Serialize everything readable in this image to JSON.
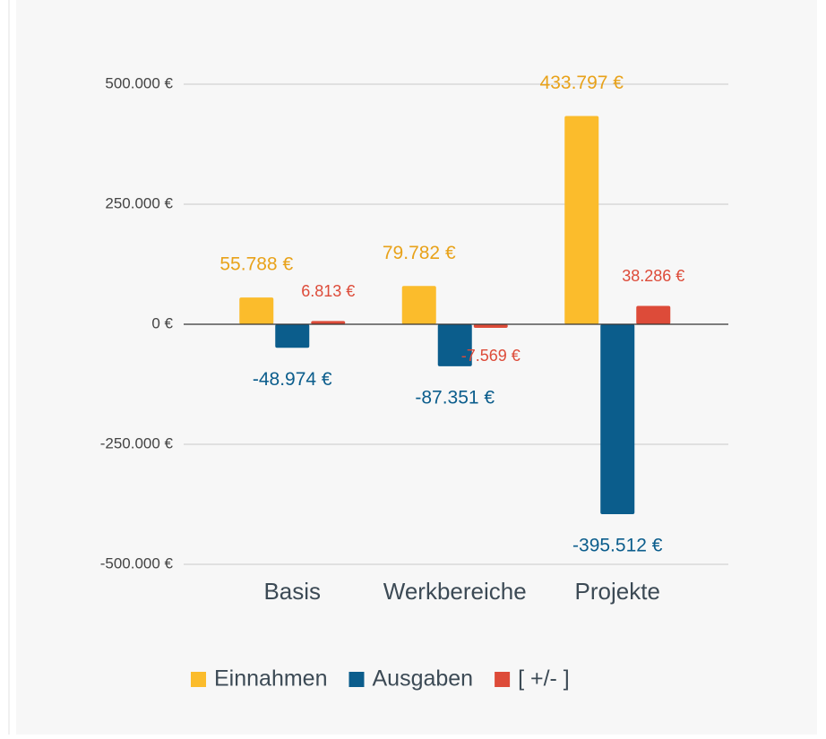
{
  "chart_data": {
    "type": "bar",
    "categories": [
      "Basis",
      "Werkbereiche",
      "Projekte"
    ],
    "series": [
      {
        "name": "Einnahmen",
        "color": "#fbbc2c",
        "label_color": "#e8a21a",
        "values": [
          55788,
          79782,
          433797
        ],
        "value_labels": [
          "55.788 €",
          "79.782 €",
          "433.797 €"
        ]
      },
      {
        "name": "Ausgaben",
        "color": "#0b5d8c",
        "label_color": "#0b5d8c",
        "values": [
          -48974,
          -87351,
          -395512
        ],
        "value_labels": [
          "-48.974 €",
          "-87.351 €",
          "-395.512 €"
        ]
      },
      {
        "name": "[ +/- ]",
        "color": "#dd4b39",
        "label_color": "#dd4b39",
        "values": [
          6813,
          -7569,
          38286
        ],
        "value_labels": [
          "6.813 €",
          "-7.569 €",
          "38.286 €"
        ]
      }
    ],
    "ylim": [
      -500000,
      500000
    ],
    "yticks": [
      {
        "value": -500000,
        "label": "-500.000 €"
      },
      {
        "value": -250000,
        "label": "-250.000 €"
      },
      {
        "value": 0,
        "label": "0 €"
      },
      {
        "value": 250000,
        "label": "250.000 €"
      },
      {
        "value": 500000,
        "label": "500.000 €"
      }
    ],
    "grid": true,
    "legend": "bottom"
  }
}
